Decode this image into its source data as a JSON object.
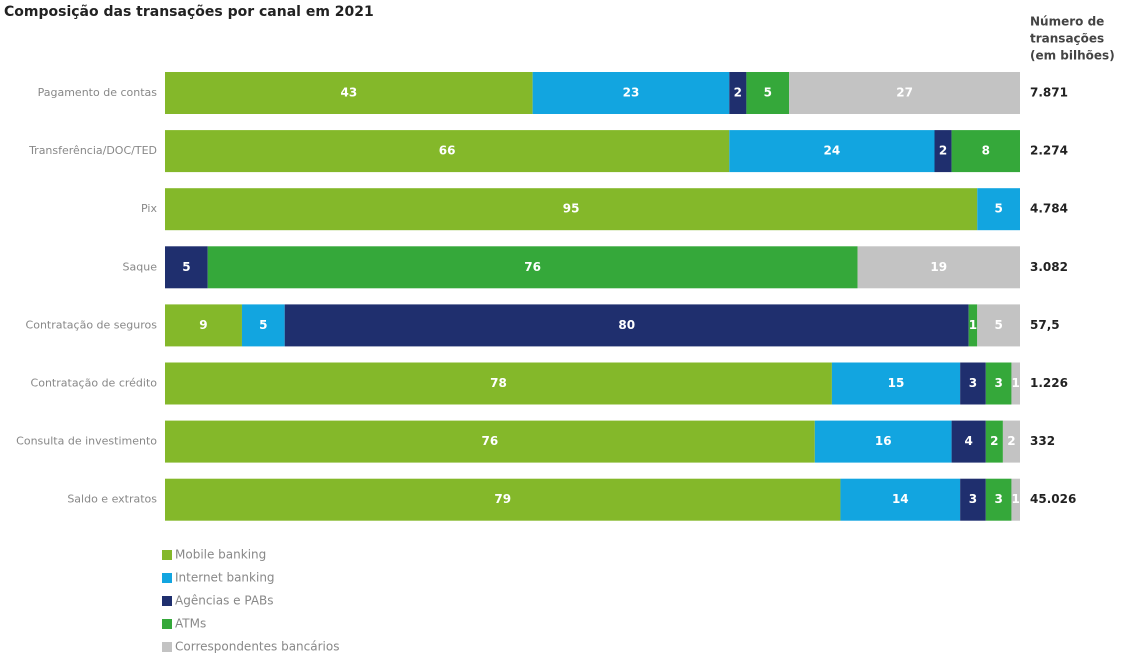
{
  "chart_data": {
    "type": "stacked-barh",
    "title": "Composição das transações por canal em 2021",
    "categories": [
      "Pagamento de contas",
      "Transferência/DOC/TED",
      "Pix",
      "Saque",
      "Contratação de seguros",
      "Contratação de crédito",
      "Consulta de investimento",
      "Saldo e extratos"
    ],
    "xlim": [
      0,
      100
    ],
    "series": [
      {
        "name": "Mobile banking",
        "color": "#84b82a",
        "values": [
          43,
          66,
          95,
          null,
          9,
          78,
          76,
          79
        ]
      },
      {
        "name": "Internet banking",
        "color": "#12a5e0",
        "values": [
          23,
          24,
          5,
          null,
          5,
          15,
          16,
          14
        ]
      },
      {
        "name": "Agências e PABs",
        "color": "#1f2f6e",
        "values": [
          2,
          2,
          null,
          5,
          80,
          3,
          4,
          3
        ]
      },
      {
        "name": "ATMs",
        "color": "#35a83a",
        "values": [
          5,
          8,
          null,
          76,
          1,
          3,
          2,
          3
        ]
      },
      {
        "name": "Correspondentes bancários",
        "color": "#c3c3c3",
        "values": [
          27,
          null,
          null,
          19,
          5,
          1,
          2,
          1
        ]
      }
    ],
    "totals": {
      "header": [
        "Número de",
        "transações",
        "(em bilhões)"
      ],
      "values": [
        7871,
        2274,
        4784,
        3082,
        57.5,
        1226,
        332,
        45026
      ],
      "value_labels": [
        "7.871",
        "2.274",
        "4.784",
        "3.082",
        "57,5",
        "1.226",
        "332",
        "45.026"
      ]
    }
  }
}
